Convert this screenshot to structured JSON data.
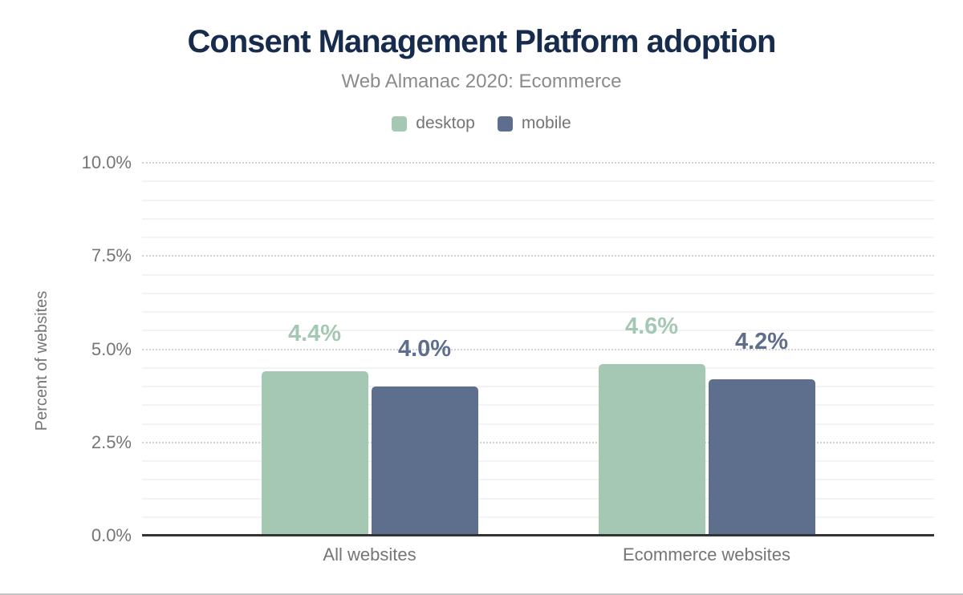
{
  "chart_data": {
    "type": "bar",
    "title": "Consent Management Platform adoption",
    "subtitle": "Web Almanac 2020: Ecommerce",
    "ylabel": "Percent of websites",
    "categories": [
      "All websites",
      "Ecommerce websites"
    ],
    "series": [
      {
        "name": "desktop",
        "color": "#a5c8b4",
        "values": [
          4.4,
          4.6
        ],
        "labels": [
          "4.4%",
          "4.6%"
        ]
      },
      {
        "name": "mobile",
        "color": "#5d6f8d",
        "values": [
          4.0,
          4.2
        ],
        "labels": [
          "4.0%",
          "4.2%"
        ]
      }
    ],
    "ylim": [
      0,
      10
    ],
    "ytick_step": 2.5,
    "ytick_labels": [
      "0.0%",
      "2.5%",
      "5.0%",
      "7.5%",
      "10.0%"
    ],
    "minor_grid_step": 0.5,
    "grid": true,
    "legend_position": "top",
    "colors": {
      "title": "#172b4d",
      "subtitle": "#8b8b8b",
      "axis_text": "#757575",
      "axis_line": "#333333",
      "major_grid": "#d2d2d2",
      "minor_grid": "#f3f3f3"
    }
  }
}
